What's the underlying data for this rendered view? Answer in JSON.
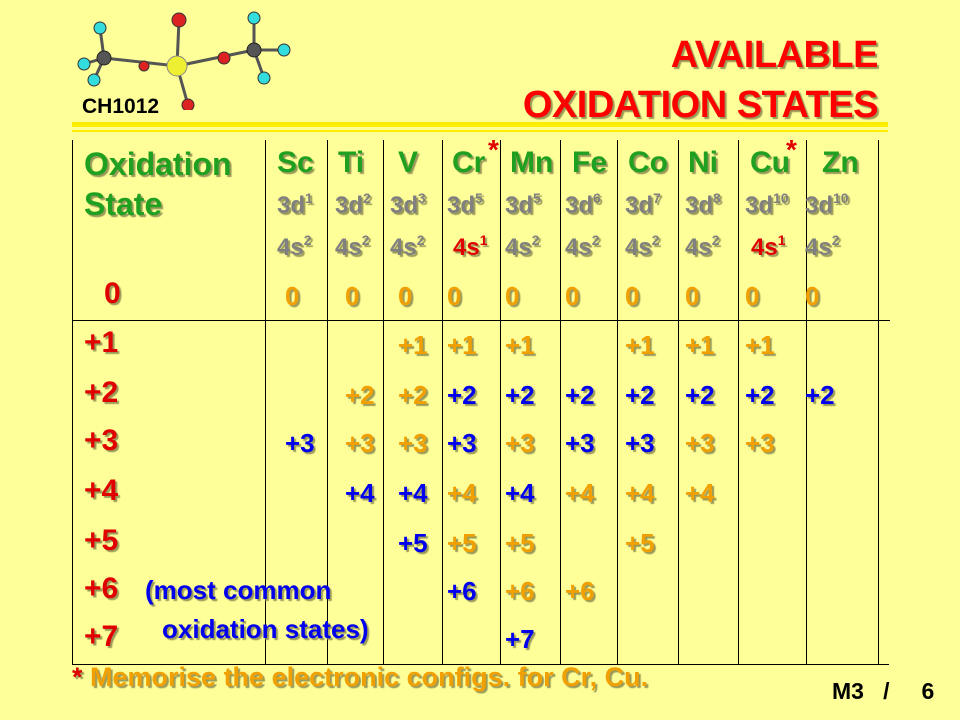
{
  "header": {
    "title_line1": "AVAILABLE",
    "title_line2": "OXIDATION STATES",
    "course": "CH1012"
  },
  "colors": {
    "background": "#ffff99",
    "title": "#ff0000",
    "label_green": "#20a020",
    "orange": "#f0a000",
    "blue": "#0000ee",
    "bar": "#ffee00"
  },
  "table": {
    "header_line1": "Oxidation",
    "header_line2": "State",
    "elements": [
      {
        "symbol": "Sc",
        "d": "3d",
        "dexp": "1",
        "s": "4s",
        "sexp": "2",
        "star": ""
      },
      {
        "symbol": "Ti",
        "d": "3d",
        "dexp": "2",
        "s": "4s",
        "sexp": "2",
        "star": ""
      },
      {
        "symbol": "V",
        "d": "3d",
        "dexp": "3",
        "s": "4s",
        "sexp": "2",
        "star": ""
      },
      {
        "symbol": "Cr",
        "d": "3d",
        "dexp": "5",
        "s": "4s",
        "sexp": "1",
        "star": "*"
      },
      {
        "symbol": "Mn",
        "d": "3d",
        "dexp": "5",
        "s": "4s",
        "sexp": "2",
        "star": ""
      },
      {
        "symbol": "Fe",
        "d": "3d",
        "dexp": "6",
        "s": "4s",
        "sexp": "2",
        "star": ""
      },
      {
        "symbol": "Co",
        "d": "3d",
        "dexp": "7",
        "s": "4s",
        "sexp": "2",
        "star": ""
      },
      {
        "symbol": "Ni",
        "d": "3d",
        "dexp": "8",
        "s": "4s",
        "sexp": "2",
        "star": ""
      },
      {
        "symbol": "Cu",
        "d": "3d",
        "dexp": "10",
        "s": "4s",
        "sexp": "1",
        "star": "*"
      },
      {
        "symbol": "Zn",
        "d": "3d",
        "dexp": "10",
        "s": "4s",
        "sexp": "2",
        "star": ""
      }
    ],
    "row_labels": [
      "0",
      "+1",
      "+2",
      "+3",
      "+4",
      "+5",
      "+6",
      "+7"
    ],
    "cells": [
      [
        {
          "t": "0",
          "c": "o"
        },
        {
          "t": "0",
          "c": "o"
        },
        {
          "t": "0",
          "c": "o"
        },
        {
          "t": "0",
          "c": "o"
        },
        {
          "t": "0",
          "c": "o"
        },
        {
          "t": "0",
          "c": "o"
        },
        {
          "t": "0",
          "c": "o"
        },
        {
          "t": "0",
          "c": "o"
        },
        {
          "t": "0",
          "c": "o"
        },
        {
          "t": "0",
          "c": "o"
        }
      ],
      [
        null,
        null,
        {
          "t": "+1",
          "c": "o"
        },
        {
          "t": "+1",
          "c": "o"
        },
        {
          "t": "+1",
          "c": "o"
        },
        null,
        {
          "t": "+1",
          "c": "o"
        },
        {
          "t": "+1",
          "c": "o"
        },
        {
          "t": "+1",
          "c": "o"
        },
        null
      ],
      [
        null,
        {
          "t": "+2",
          "c": "o"
        },
        {
          "t": "+2",
          "c": "o"
        },
        {
          "t": "+2",
          "c": "b"
        },
        {
          "t": "+2",
          "c": "b"
        },
        {
          "t": "+2",
          "c": "b"
        },
        {
          "t": "+2",
          "c": "b"
        },
        {
          "t": "+2",
          "c": "b"
        },
        {
          "t": "+2",
          "c": "b"
        },
        {
          "t": "+2",
          "c": "b"
        }
      ],
      [
        {
          "t": "+3",
          "c": "b"
        },
        {
          "t": "+3",
          "c": "o"
        },
        {
          "t": "+3",
          "c": "o"
        },
        {
          "t": "+3",
          "c": "b"
        },
        {
          "t": "+3",
          "c": "o"
        },
        {
          "t": "+3",
          "c": "b"
        },
        {
          "t": "+3",
          "c": "b"
        },
        {
          "t": "+3",
          "c": "o"
        },
        {
          "t": "+3",
          "c": "o"
        },
        null
      ],
      [
        null,
        {
          "t": "+4",
          "c": "b"
        },
        {
          "t": "+4",
          "c": "b"
        },
        {
          "t": "+4",
          "c": "o"
        },
        {
          "t": "+4",
          "c": "b"
        },
        {
          "t": "+4",
          "c": "o"
        },
        {
          "t": "+4",
          "c": "o"
        },
        {
          "t": "+4",
          "c": "o"
        },
        null,
        null
      ],
      [
        null,
        null,
        {
          "t": "+5",
          "c": "b"
        },
        {
          "t": "+5",
          "c": "o"
        },
        {
          "t": "+5",
          "c": "o"
        },
        null,
        {
          "t": "+5",
          "c": "o"
        },
        null,
        null,
        null
      ],
      [
        null,
        null,
        null,
        {
          "t": "+6",
          "c": "b"
        },
        {
          "t": "+6",
          "c": "o"
        },
        {
          "t": "+6",
          "c": "o"
        },
        null,
        null,
        null,
        null
      ],
      [
        null,
        null,
        null,
        null,
        {
          "t": "+7",
          "c": "b"
        },
        null,
        null,
        null,
        null,
        null
      ]
    ],
    "note_line1": "(most common",
    "note_line2": "oxidation states)"
  },
  "footer": {
    "star": "*",
    "note": " Memorise the electronic configs. for Cr, Cu.",
    "page": "M3   /     6"
  }
}
